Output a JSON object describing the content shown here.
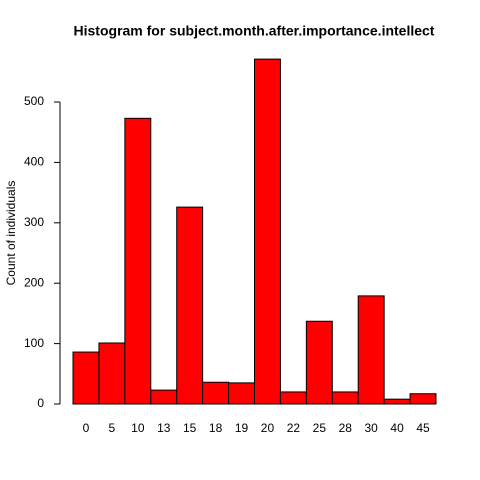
{
  "chart_data": {
    "type": "bar",
    "title": "Histogram for subject.month.after.importance.intellect",
    "y_label": "Count of individuals",
    "categories": [
      "0",
      "5",
      "10",
      "13",
      "15",
      "18",
      "19",
      "20",
      "22",
      "25",
      "28",
      "30",
      "40",
      "45"
    ],
    "values": [
      86,
      101,
      473,
      23,
      326,
      36,
      35,
      571,
      20,
      137,
      20,
      179,
      8,
      17
    ],
    "color": "#ff0000",
    "ylim": [
      0,
      600
    ],
    "yticks": [
      0,
      100,
      200,
      300,
      400,
      500
    ],
    "grid": false
  }
}
